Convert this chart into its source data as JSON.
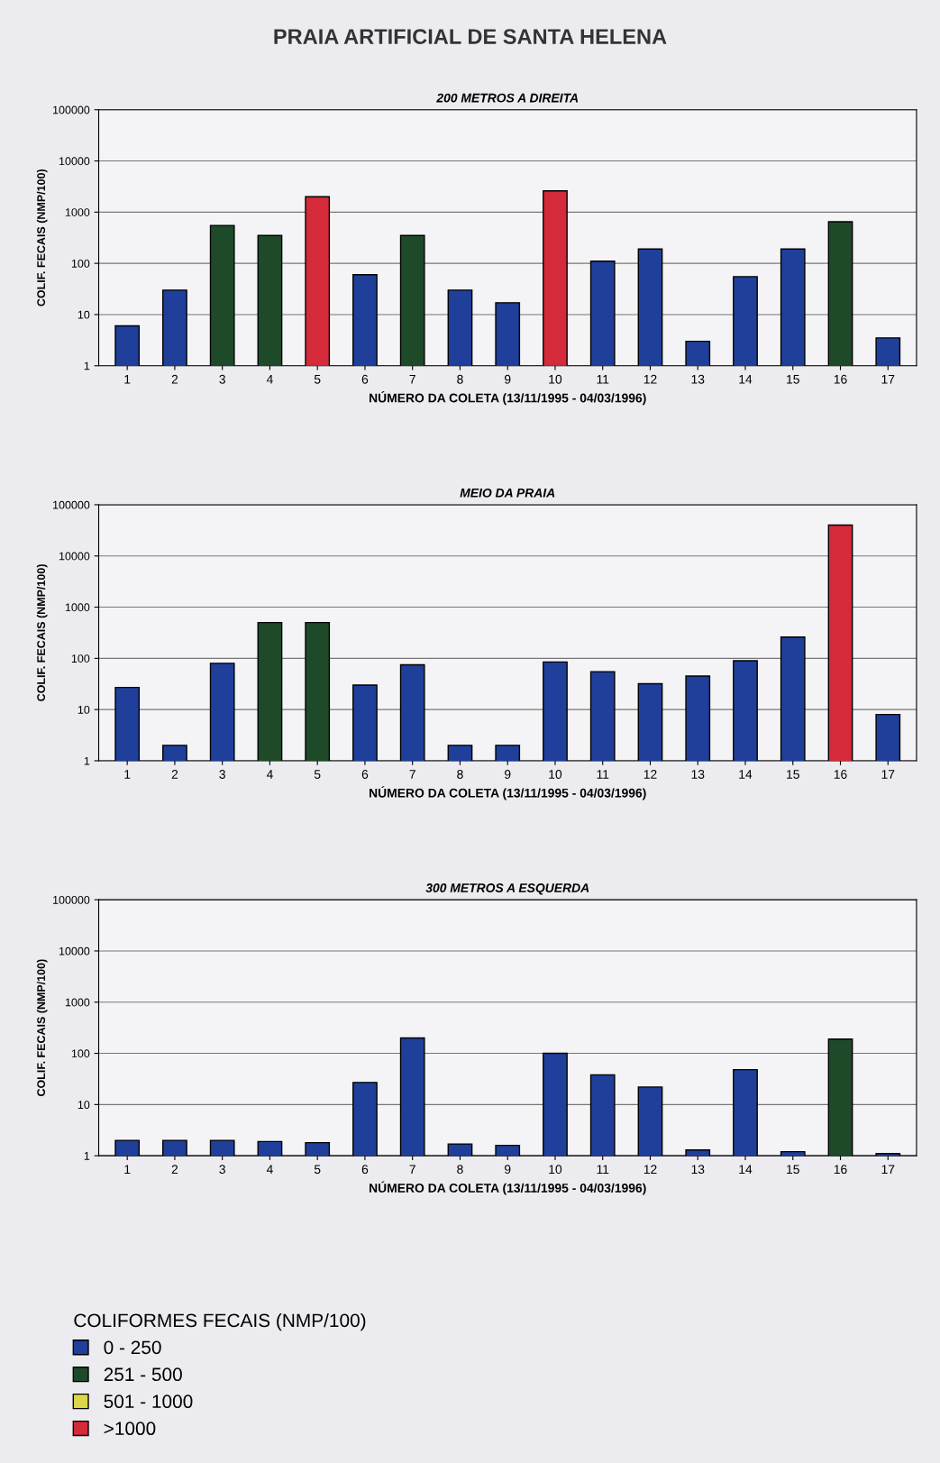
{
  "chart_data": [
    {
      "type": "bar",
      "title": "PRAIA ARTIFICIAL DE SANTA HELENA",
      "subtitle": "200 METROS A DIREITA",
      "xlabel": "NÚMERO DA COLETA (13/11/1995 - 04/03/1996)",
      "ylabel": "COLIF. FECAIS (NMP/100)",
      "log": true,
      "ylim": [
        1,
        100000
      ],
      "yticks": [
        1,
        10,
        100,
        1000,
        10000,
        100000
      ],
      "grid": "y",
      "categories": [
        "1",
        "2",
        "3",
        "4",
        "5",
        "6",
        "7",
        "8",
        "9",
        "10",
        "11",
        "12",
        "13",
        "14",
        "15",
        "16",
        "17"
      ],
      "series": [
        {
          "color": "#1f3f9a",
          "values": [
            6,
            30,
            null,
            null,
            null,
            60,
            null,
            30,
            17,
            null,
            110,
            190,
            3,
            55,
            190,
            null,
            3.5
          ]
        },
        {
          "color": "#1f4a2a",
          "values": [
            null,
            null,
            550,
            350,
            null,
            null,
            350,
            null,
            null,
            null,
            null,
            null,
            null,
            null,
            null,
            650,
            null
          ]
        },
        {
          "color": "#d42a3a",
          "values": [
            null,
            null,
            null,
            null,
            2000,
            null,
            null,
            null,
            null,
            2600,
            null,
            null,
            null,
            null,
            null,
            null,
            null
          ]
        }
      ]
    },
    {
      "type": "bar",
      "title": "MEIO DA PRAIA",
      "xlabel": "NÚMERO DA COLETA (13/11/1995 - 04/03/1996)",
      "ylabel": "COLIF. FECAIS (NMP/100)",
      "log": true,
      "ylim": [
        1,
        100000
      ],
      "yticks": [
        1,
        10,
        100,
        1000,
        10000,
        100000
      ],
      "grid": "y",
      "categories": [
        "1",
        "2",
        "3",
        "4",
        "5",
        "6",
        "7",
        "8",
        "9",
        "10",
        "11",
        "12",
        "13",
        "14",
        "15",
        "16",
        "17"
      ],
      "series": [
        {
          "color": "#1f3f9a",
          "values": [
            27,
            2,
            80,
            null,
            null,
            30,
            75,
            2,
            2,
            85,
            55,
            32,
            45,
            90,
            260,
            null,
            8
          ]
        },
        {
          "color": "#1f4a2a",
          "values": [
            null,
            null,
            null,
            500,
            500,
            null,
            null,
            null,
            null,
            null,
            null,
            null,
            null,
            null,
            null,
            null,
            null
          ]
        },
        {
          "color": "#d42a3a",
          "values": [
            null,
            null,
            null,
            null,
            null,
            null,
            null,
            null,
            null,
            null,
            null,
            null,
            null,
            null,
            null,
            40000,
            null
          ]
        }
      ]
    },
    {
      "type": "bar",
      "title": "300 METROS A ESQUERDA",
      "xlabel": "NÚMERO DA COLETA (13/11/1995 - 04/03/1996)",
      "ylabel": "COLIF. FECAIS (NMP/100)",
      "log": true,
      "ylim": [
        1,
        100000
      ],
      "yticks": [
        1,
        10,
        100,
        1000,
        10000,
        100000
      ],
      "grid": "y",
      "legend": "bottom",
      "legend_title": "COLIFORMES FECAIS (NMP/100)",
      "categories": [
        "1",
        "2",
        "3",
        "4",
        "5",
        "6",
        "7",
        "8",
        "9",
        "10",
        "11",
        "12",
        "13",
        "14",
        "15",
        "16",
        "17"
      ],
      "series": [
        {
          "name": "0 - 250",
          "color": "#1f3f9a",
          "values": [
            2,
            2,
            2,
            1.9,
            1.8,
            27,
            200,
            1.7,
            1.6,
            100,
            38,
            22,
            1.3,
            48,
            1.2,
            null,
            1.1
          ]
        },
        {
          "name": "251 - 500",
          "color": "#1f4a2a",
          "values": [
            null,
            null,
            null,
            null,
            null,
            null,
            null,
            null,
            null,
            null,
            null,
            null,
            null,
            null,
            null,
            190,
            null
          ]
        },
        {
          "name": "501 - 1000",
          "color": "#d8d84a",
          "values": [
            null,
            null,
            null,
            null,
            null,
            null,
            null,
            null,
            null,
            null,
            null,
            null,
            null,
            null,
            null,
            null,
            null
          ]
        },
        {
          "name": ">1000",
          "color": "#d42a3a",
          "values": [
            null,
            null,
            null,
            null,
            null,
            null,
            null,
            null,
            null,
            null,
            null,
            null,
            null,
            null,
            null,
            null,
            null
          ]
        }
      ]
    }
  ]
}
